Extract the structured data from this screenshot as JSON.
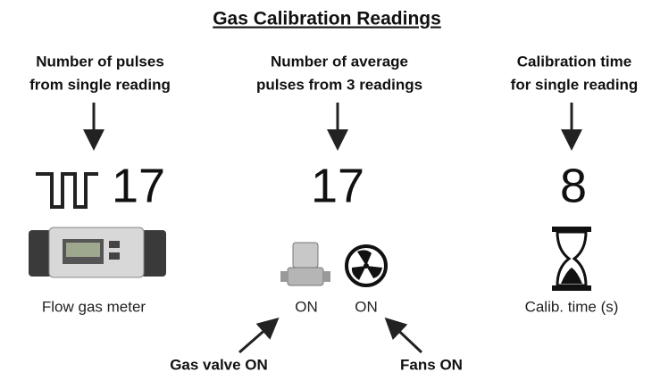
{
  "title": "Gas Calibration Readings",
  "columns": [
    {
      "label_lines": [
        "Number of pulses",
        "from single reading"
      ],
      "value": 17,
      "caption": "Flow gas meter"
    },
    {
      "label_lines": [
        "Number of average",
        "pulses from 3 readings"
      ],
      "value": 17,
      "captions": [
        "ON",
        "ON"
      ]
    },
    {
      "label_lines": [
        "Calibration time",
        "for single reading"
      ],
      "value": 8,
      "caption": "Calib. time (s)"
    }
  ],
  "callouts": [
    "Gas valve ON",
    "Fans ON"
  ]
}
